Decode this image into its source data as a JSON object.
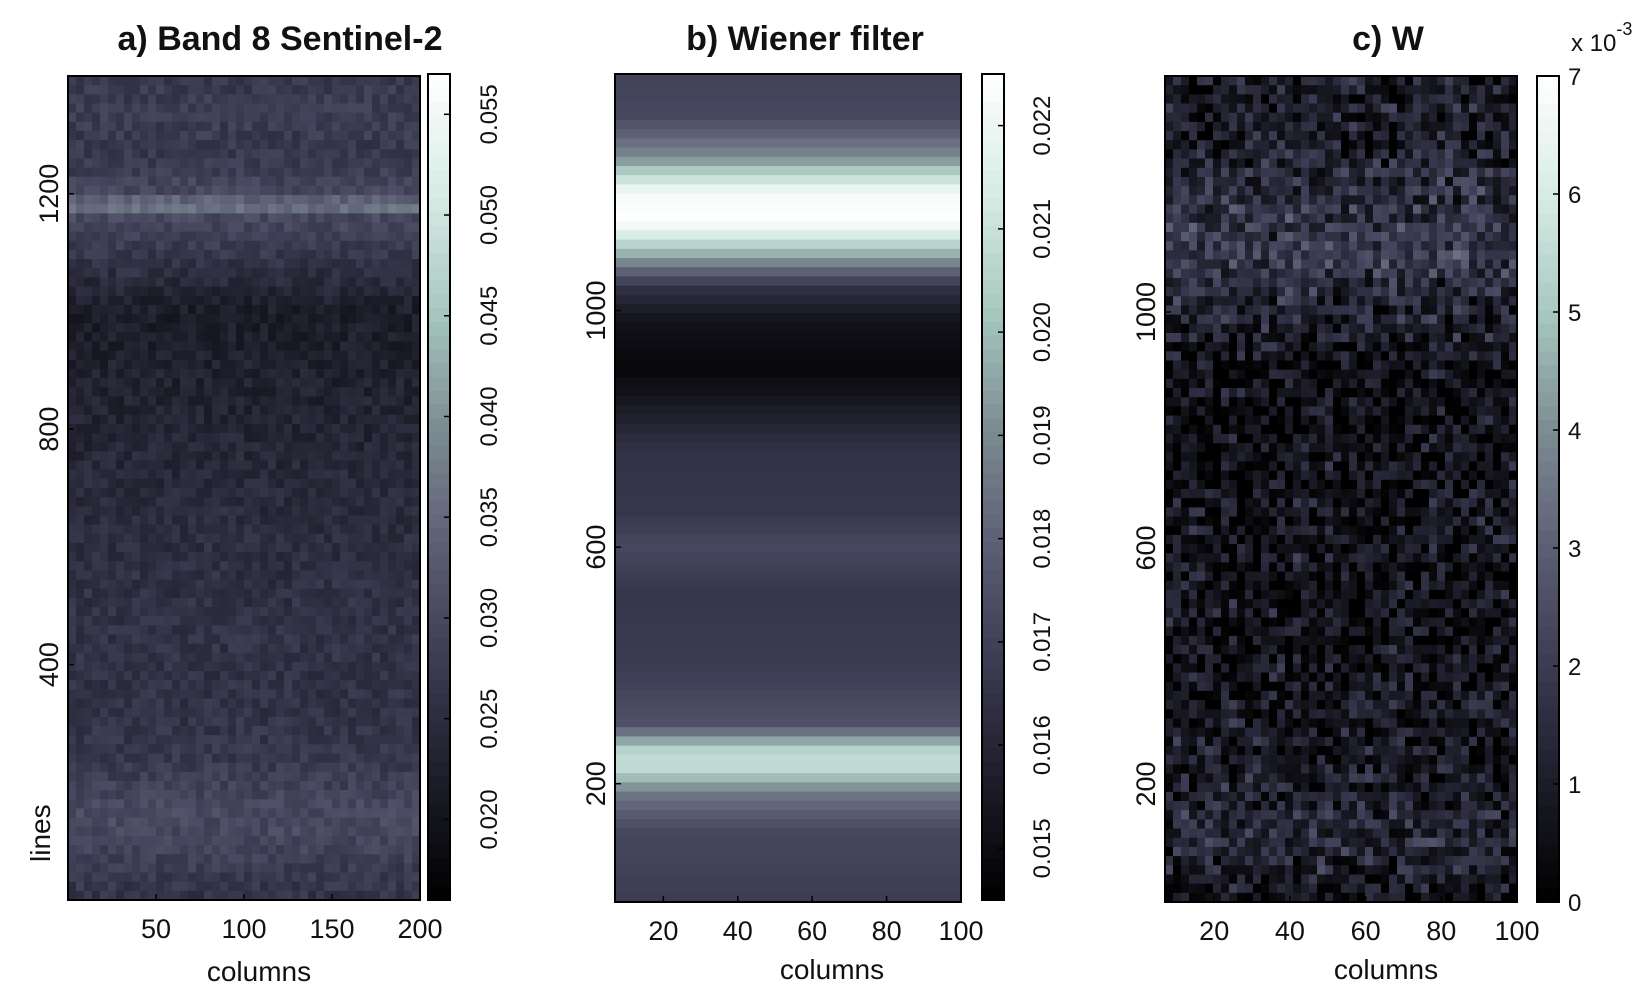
{
  "figure": {
    "panels": [
      {
        "title": "a) Band 8 Sentinel-2"
      },
      {
        "title": "b) Wiener filter"
      },
      {
        "title": "c) W"
      }
    ]
  },
  "colormap": [
    "#000000",
    "#1c1c28",
    "#3b3b52",
    "#5c5e74",
    "#7d8c92",
    "#a8c8c0",
    "#d8ece6",
    "#ffffff"
  ],
  "chart_data": [
    {
      "type": "heatmap",
      "title": "a) Band 8 Sentinel-2",
      "xlabel": "columns",
      "ylabel": "lines",
      "xlim": [
        0,
        200
      ],
      "ylim": [
        0,
        1400
      ],
      "xticks": [
        "50",
        "100",
        "150",
        "200"
      ],
      "xtick_values": [
        50,
        100,
        150,
        200
      ],
      "yticks": [
        "400",
        "800",
        "1200"
      ],
      "ytick_values": [
        400,
        800,
        1200
      ],
      "colorbar": {
        "range": [
          0.016,
          0.057
        ],
        "ticks": [
          "0.020",
          "0.025",
          "0.030",
          "0.035",
          "0.040",
          "0.045",
          "0.050",
          "0.055"
        ],
        "tick_values": [
          0.02,
          0.025,
          0.03,
          0.035,
          0.04,
          0.045,
          0.05,
          0.055
        ],
        "scale_label": ""
      },
      "profile": {
        "lines": [
          0,
          120,
          160,
          240,
          320,
          480,
          640,
          760,
          880,
          1000,
          1080,
          1160,
          1180,
          1200,
          1260,
          1340,
          1400
        ],
        "values": [
          0.026,
          0.03,
          0.03,
          0.027,
          0.026,
          0.026,
          0.025,
          0.024,
          0.023,
          0.022,
          0.026,
          0.03,
          0.038,
          0.03,
          0.027,
          0.028,
          0.027
        ]
      },
      "noise": 0.002
    },
    {
      "type": "heatmap",
      "title": "b) Wiener filter",
      "xlabel": "columns",
      "ylabel": "",
      "xlim": [
        7,
        100
      ],
      "ylim": [
        0,
        1400
      ],
      "xticks": [
        "20",
        "40",
        "60",
        "80",
        "100"
      ],
      "xtick_values": [
        20,
        40,
        60,
        80,
        100
      ],
      "yticks": [
        "200",
        "600",
        "1000"
      ],
      "yticks_values": [],
      "ytick_values": [
        200,
        600,
        1000
      ],
      "colorbar": {
        "range": [
          0.0145,
          0.0225
        ],
        "ticks": [
          "0.015",
          "0.016",
          "0.017",
          "0.018",
          "0.019",
          "0.020",
          "0.021",
          "0.022"
        ],
        "tick_values": [
          0.015,
          0.016,
          0.017,
          0.018,
          0.019,
          0.02,
          0.021,
          0.022
        ],
        "scale_label": ""
      },
      "profile": {
        "lines": [
          0,
          120,
          180,
          230,
          260,
          300,
          400,
          520,
          600,
          660,
          760,
          900,
          980,
          1040,
          1100,
          1150,
          1200,
          1260,
          1330,
          1400
        ],
        "values": [
          0.0168,
          0.0172,
          0.0185,
          0.021,
          0.0205,
          0.0175,
          0.0168,
          0.0166,
          0.0172,
          0.0166,
          0.0165,
          0.0148,
          0.0152,
          0.0165,
          0.02,
          0.0225,
          0.0222,
          0.019,
          0.0172,
          0.017
        ]
      },
      "noise": 0.0
    },
    {
      "type": "heatmap",
      "title": "c) W",
      "xlabel": "columns",
      "ylabel": "",
      "xlim": [
        7,
        100
      ],
      "ylim": [
        0,
        1400
      ],
      "xticks": [
        "20",
        "40",
        "60",
        "80",
        "100"
      ],
      "xtick_values": [
        20,
        40,
        60,
        80,
        100
      ],
      "yticks": [
        "200",
        "600",
        "1000"
      ],
      "ytick_values": [
        200,
        600,
        1000
      ],
      "colorbar": {
        "range": [
          0,
          7
        ],
        "ticks": [
          "0",
          "1",
          "2",
          "3",
          "4",
          "5",
          "6",
          "7"
        ],
        "tick_values": [
          0,
          1,
          2,
          3,
          4,
          5,
          6,
          7
        ],
        "scale_label": "x 10",
        "scale_exponent": "-3"
      },
      "profile": {
        "lines": [
          0,
          100,
          200,
          400,
          600,
          800,
          900,
          1000,
          1100,
          1180,
          1300,
          1400
        ],
        "values": [
          0.6,
          1.4,
          0.9,
          0.6,
          0.7,
          0.5,
          0.5,
          1.2,
          2.0,
          1.6,
          0.9,
          1.0
        ]
      },
      "noise": 1.0
    }
  ]
}
